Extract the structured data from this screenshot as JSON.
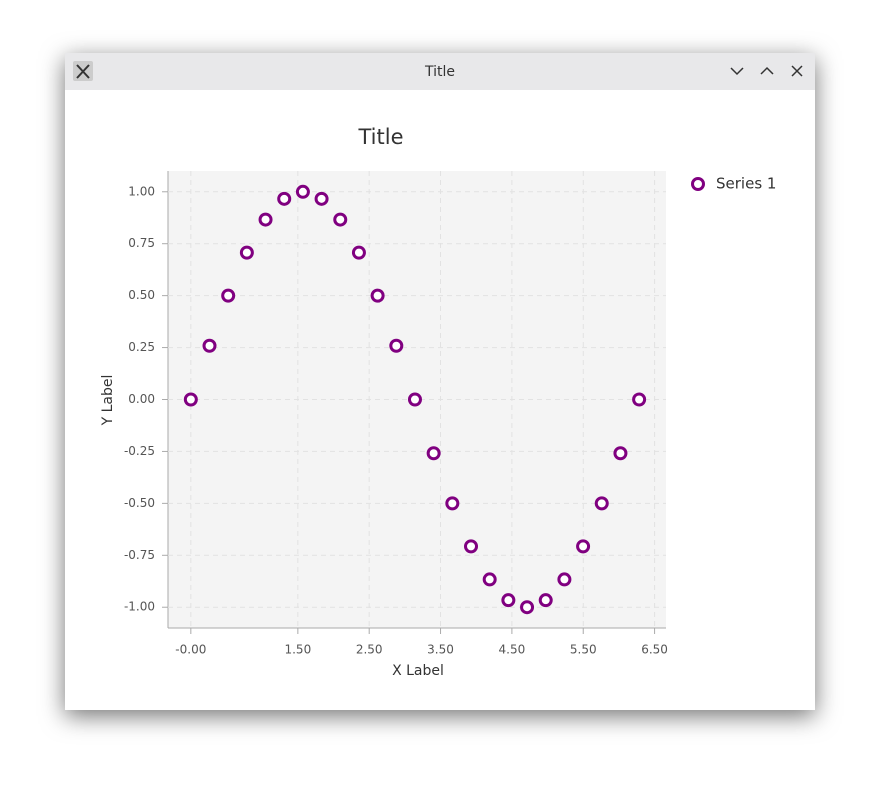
{
  "window": {
    "title": "Title"
  },
  "chart_data": {
    "type": "scatter",
    "title": "Title",
    "xlabel": "X Label",
    "ylabel": "Y Label",
    "series": [
      {
        "name": "Series 1",
        "color": "#800080",
        "x": [
          0,
          0.2618,
          0.5236,
          0.7854,
          1.0472,
          1.309,
          1.5708,
          1.8326,
          2.0944,
          2.3562,
          2.618,
          2.8798,
          3.1416,
          3.4034,
          3.6652,
          3.927,
          4.1888,
          4.4506,
          4.7124,
          4.9742,
          5.236,
          5.4978,
          5.7596,
          6.0214,
          6.2832
        ],
        "values": [
          0,
          0.2588,
          0.5,
          0.7071,
          0.866,
          0.9659,
          1,
          0.9659,
          0.866,
          0.7071,
          0.5,
          0.2588,
          0,
          -0.2588,
          -0.5,
          -0.7071,
          -0.866,
          -0.9659,
          -1,
          -0.9659,
          -0.866,
          -0.7071,
          -0.5,
          -0.2588,
          0
        ]
      }
    ],
    "xlim": [
      -0.32,
      6.66
    ],
    "ylim": [
      -1.1,
      1.1
    ],
    "xticks": [
      {
        "value": 0,
        "label": "-0.00"
      },
      {
        "value": 1.5,
        "label": "1.50"
      },
      {
        "value": 2.5,
        "label": "2.50"
      },
      {
        "value": 3.5,
        "label": "3.50"
      },
      {
        "value": 4.5,
        "label": "4.50"
      },
      {
        "value": 5.5,
        "label": "5.50"
      },
      {
        "value": 6.5,
        "label": "6.50"
      }
    ],
    "yticks": [
      {
        "value": -1,
        "label": "-1.00"
      },
      {
        "value": -0.75,
        "label": "-0.75"
      },
      {
        "value": -0.5,
        "label": "-0.50"
      },
      {
        "value": -0.25,
        "label": "-0.25"
      },
      {
        "value": 0,
        "label": "0.00"
      },
      {
        "value": 0.25,
        "label": "0.25"
      },
      {
        "value": 0.5,
        "label": "0.50"
      },
      {
        "value": 0.75,
        "label": "0.75"
      },
      {
        "value": 1,
        "label": "1.00"
      }
    ],
    "grid": true,
    "legend": "upper right"
  }
}
